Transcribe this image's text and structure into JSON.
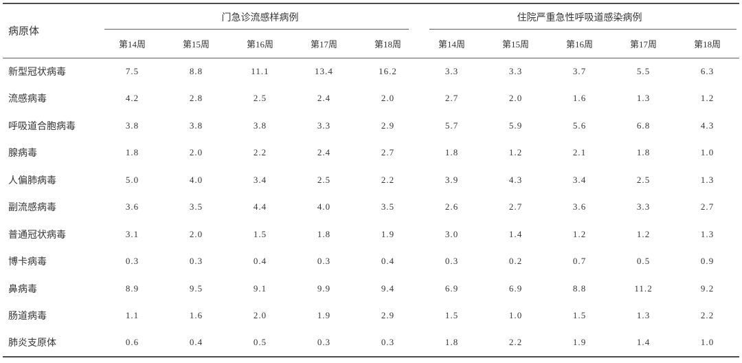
{
  "chart_data": {
    "type": "table",
    "corner_header": "病原体",
    "column_groups": [
      {
        "label": "门急诊流感样病例",
        "weeks": [
          "第14周",
          "第15周",
          "第16周",
          "第17周",
          "第18周"
        ]
      },
      {
        "label": "住院严重急性呼吸道感染病例",
        "weeks": [
          "第14周",
          "第15周",
          "第16周",
          "第17周",
          "第18周"
        ]
      }
    ],
    "rows": [
      {
        "pathogen": "新型冠状病毒",
        "outpatient": [
          "7.5",
          "8.8",
          "11.1",
          "13.4",
          "16.2"
        ],
        "inpatient": [
          "3.3",
          "3.3",
          "3.7",
          "5.5",
          "6.3"
        ]
      },
      {
        "pathogen": "流感病毒",
        "outpatient": [
          "4.2",
          "2.8",
          "2.5",
          "2.4",
          "2.0"
        ],
        "inpatient": [
          "2.7",
          "2.0",
          "1.6",
          "1.3",
          "1.2"
        ]
      },
      {
        "pathogen": "呼吸道合胞病毒",
        "outpatient": [
          "3.8",
          "3.8",
          "3.8",
          "3.3",
          "2.9"
        ],
        "inpatient": [
          "5.7",
          "5.9",
          "5.6",
          "6.8",
          "4.3"
        ]
      },
      {
        "pathogen": "腺病毒",
        "outpatient": [
          "1.8",
          "2.0",
          "2.2",
          "2.4",
          "2.7"
        ],
        "inpatient": [
          "1.8",
          "1.2",
          "2.1",
          "1.8",
          "1.0"
        ]
      },
      {
        "pathogen": "人偏肺病毒",
        "outpatient": [
          "5.0",
          "4.0",
          "3.4",
          "2.5",
          "2.2"
        ],
        "inpatient": [
          "3.9",
          "4.3",
          "3.4",
          "2.5",
          "1.3"
        ]
      },
      {
        "pathogen": "副流感病毒",
        "outpatient": [
          "3.6",
          "3.5",
          "4.4",
          "4.0",
          "3.5"
        ],
        "inpatient": [
          "2.6",
          "2.7",
          "3.6",
          "3.3",
          "2.7"
        ]
      },
      {
        "pathogen": "普通冠状病毒",
        "outpatient": [
          "3.1",
          "2.0",
          "1.5",
          "1.8",
          "1.9"
        ],
        "inpatient": [
          "3.0",
          "1.4",
          "1.2",
          "1.2",
          "1.3"
        ]
      },
      {
        "pathogen": "博卡病毒",
        "outpatient": [
          "0.3",
          "0.3",
          "0.4",
          "0.3",
          "0.4"
        ],
        "inpatient": [
          "0.3",
          "0.2",
          "0.7",
          "0.5",
          "0.9"
        ]
      },
      {
        "pathogen": "鼻病毒",
        "outpatient": [
          "8.9",
          "9.5",
          "9.1",
          "9.9",
          "9.4"
        ],
        "inpatient": [
          "6.9",
          "6.9",
          "8.8",
          "11.2",
          "9.2"
        ]
      },
      {
        "pathogen": "肠道病毒",
        "outpatient": [
          "1.1",
          "1.6",
          "2.0",
          "1.9",
          "2.9"
        ],
        "inpatient": [
          "1.5",
          "1.0",
          "1.5",
          "1.3",
          "2.2"
        ]
      },
      {
        "pathogen": "肺炎支原体",
        "outpatient": [
          "0.6",
          "0.4",
          "0.5",
          "0.3",
          "0.3"
        ],
        "inpatient": [
          "1.8",
          "2.2",
          "1.9",
          "1.4",
          "1.0"
        ]
      }
    ]
  }
}
